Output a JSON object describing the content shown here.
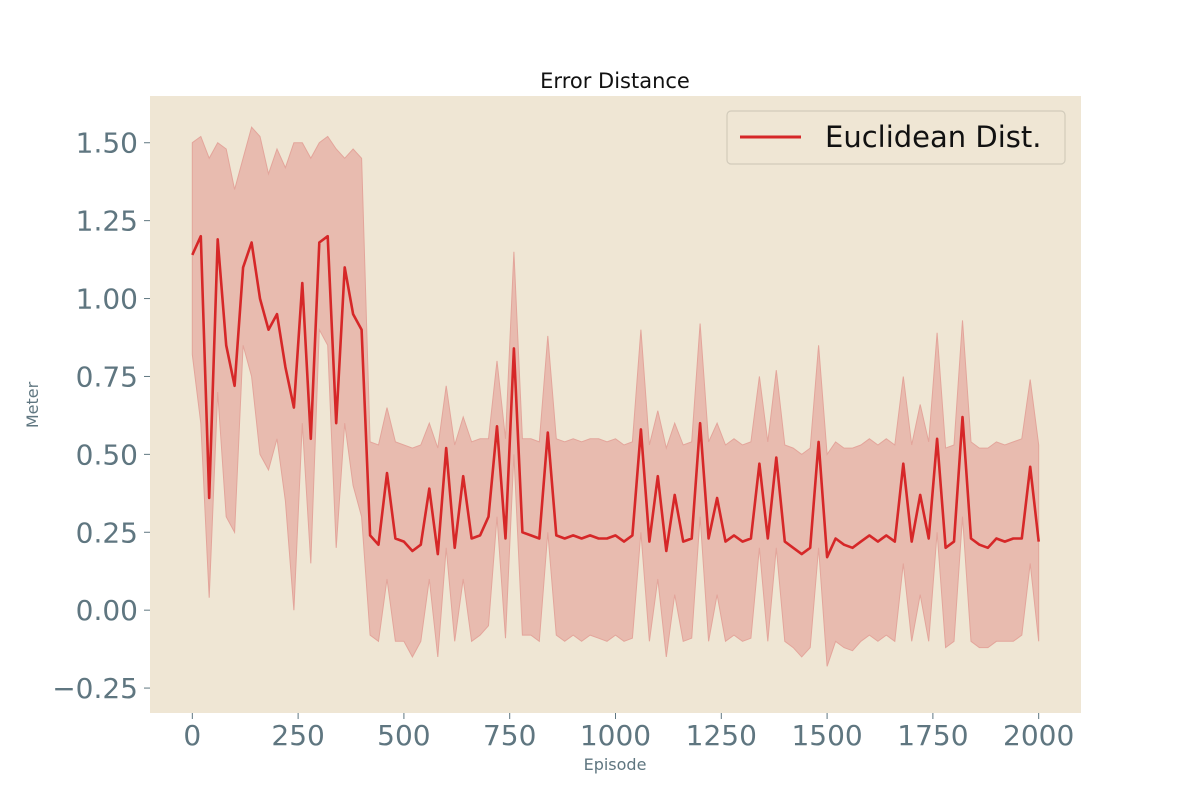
{
  "chart_data": {
    "type": "line",
    "title": "Error Distance",
    "xlabel": "Episode",
    "ylabel": "Meter",
    "xlim": [
      -100,
      2100
    ],
    "ylim": [
      -0.33,
      1.65
    ],
    "xticks": [
      "0",
      "250",
      "500",
      "750",
      "1000",
      "1250",
      "1500",
      "1750",
      "2000"
    ],
    "yticks": [
      "−0.25",
      "0.00",
      "0.25",
      "0.50",
      "0.75",
      "1.00",
      "1.25",
      "1.50"
    ],
    "grid": false,
    "legend": {
      "position": "top-right",
      "entries": [
        "Euclidean Dist."
      ]
    },
    "background": "#efe6d4",
    "series": [
      {
        "name": "Euclidean Dist.",
        "color": "#d62728",
        "band_color": "#e3a59b",
        "x": [
          0,
          20,
          40,
          60,
          80,
          100,
          120,
          140,
          160,
          180,
          200,
          220,
          240,
          260,
          280,
          300,
          320,
          340,
          360,
          380,
          400,
          420,
          440,
          460,
          480,
          500,
          520,
          540,
          560,
          580,
          600,
          620,
          640,
          660,
          680,
          700,
          720,
          740,
          760,
          780,
          800,
          820,
          840,
          860,
          880,
          900,
          920,
          940,
          960,
          980,
          1000,
          1020,
          1040,
          1060,
          1080,
          1100,
          1120,
          1140,
          1160,
          1180,
          1200,
          1220,
          1240,
          1260,
          1280,
          1300,
          1320,
          1340,
          1360,
          1380,
          1400,
          1420,
          1440,
          1460,
          1480,
          1500,
          1520,
          1540,
          1560,
          1580,
          1600,
          1620,
          1640,
          1660,
          1680,
          1700,
          1720,
          1740,
          1760,
          1780,
          1800,
          1820,
          1840,
          1860,
          1880,
          1900,
          1920,
          1940,
          1960,
          1980,
          2000
        ],
        "mean": [
          1.14,
          1.2,
          0.36,
          1.19,
          0.85,
          0.72,
          1.1,
          1.18,
          1.0,
          0.9,
          0.95,
          0.78,
          0.65,
          1.05,
          0.55,
          1.18,
          1.2,
          0.6,
          1.1,
          0.95,
          0.9,
          0.24,
          0.21,
          0.44,
          0.23,
          0.22,
          0.19,
          0.21,
          0.39,
          0.18,
          0.52,
          0.2,
          0.43,
          0.23,
          0.24,
          0.3,
          0.59,
          0.23,
          0.84,
          0.25,
          0.24,
          0.23,
          0.57,
          0.24,
          0.23,
          0.24,
          0.23,
          0.24,
          0.23,
          0.23,
          0.24,
          0.22,
          0.24,
          0.58,
          0.22,
          0.43,
          0.19,
          0.37,
          0.22,
          0.23,
          0.6,
          0.23,
          0.36,
          0.22,
          0.24,
          0.22,
          0.23,
          0.47,
          0.23,
          0.49,
          0.22,
          0.2,
          0.18,
          0.2,
          0.54,
          0.17,
          0.23,
          0.21,
          0.2,
          0.22,
          0.24,
          0.22,
          0.24,
          0.22,
          0.47,
          0.22,
          0.37,
          0.23,
          0.55,
          0.2,
          0.22,
          0.62,
          0.23,
          0.21,
          0.2,
          0.23,
          0.22,
          0.23,
          0.23,
          0.46,
          0.22
        ],
        "upper": [
          1.5,
          1.52,
          1.45,
          1.5,
          1.48,
          1.35,
          1.45,
          1.55,
          1.52,
          1.4,
          1.48,
          1.42,
          1.5,
          1.5,
          1.45,
          1.5,
          1.52,
          1.48,
          1.45,
          1.48,
          1.45,
          0.54,
          0.53,
          0.65,
          0.54,
          0.53,
          0.52,
          0.53,
          0.6,
          0.52,
          0.72,
          0.53,
          0.62,
          0.54,
          0.55,
          0.55,
          0.8,
          0.55,
          1.15,
          0.55,
          0.55,
          0.54,
          0.88,
          0.55,
          0.54,
          0.55,
          0.54,
          0.55,
          0.55,
          0.54,
          0.55,
          0.53,
          0.54,
          0.9,
          0.53,
          0.64,
          0.52,
          0.6,
          0.53,
          0.54,
          0.92,
          0.54,
          0.6,
          0.53,
          0.55,
          0.53,
          0.54,
          0.75,
          0.54,
          0.77,
          0.53,
          0.52,
          0.5,
          0.52,
          0.85,
          0.5,
          0.54,
          0.52,
          0.52,
          0.53,
          0.55,
          0.53,
          0.55,
          0.53,
          0.75,
          0.53,
          0.66,
          0.54,
          0.89,
          0.52,
          0.53,
          0.93,
          0.54,
          0.52,
          0.52,
          0.54,
          0.53,
          0.54,
          0.55,
          0.74,
          0.53
        ],
        "lower": [
          0.82,
          0.6,
          0.04,
          0.7,
          0.3,
          0.25,
          0.85,
          0.75,
          0.5,
          0.45,
          0.55,
          0.35,
          0.0,
          0.6,
          0.15,
          0.9,
          0.85,
          0.2,
          0.6,
          0.4,
          0.3,
          -0.08,
          -0.1,
          0.1,
          -0.1,
          -0.1,
          -0.15,
          -0.1,
          0.1,
          -0.15,
          0.2,
          -0.1,
          0.1,
          -0.1,
          -0.08,
          -0.05,
          0.3,
          -0.09,
          0.5,
          -0.08,
          -0.08,
          -0.1,
          0.25,
          -0.08,
          -0.1,
          -0.08,
          -0.1,
          -0.08,
          -0.09,
          -0.1,
          -0.08,
          -0.1,
          -0.09,
          0.25,
          -0.1,
          0.1,
          -0.15,
          0.05,
          -0.1,
          -0.09,
          0.3,
          -0.1,
          0.05,
          -0.1,
          -0.08,
          -0.1,
          -0.09,
          0.2,
          -0.1,
          0.2,
          -0.1,
          -0.12,
          -0.15,
          -0.12,
          0.2,
          -0.18,
          -0.1,
          -0.12,
          -0.13,
          -0.1,
          -0.08,
          -0.1,
          -0.08,
          -0.1,
          0.15,
          -0.1,
          0.05,
          -0.1,
          0.25,
          -0.12,
          -0.1,
          0.3,
          -0.1,
          -0.12,
          -0.12,
          -0.1,
          -0.1,
          -0.1,
          -0.08,
          0.15,
          -0.1
        ]
      }
    ]
  }
}
